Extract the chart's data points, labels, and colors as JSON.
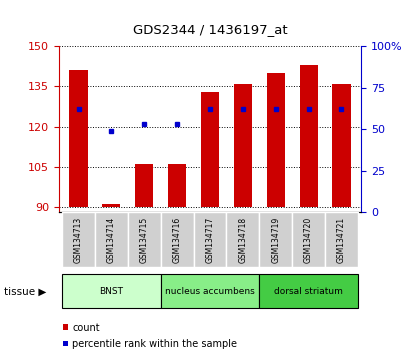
{
  "title": "GDS2344 / 1436197_at",
  "samples": [
    "GSM134713",
    "GSM134714",
    "GSM134715",
    "GSM134716",
    "GSM134717",
    "GSM134718",
    "GSM134719",
    "GSM134720",
    "GSM134721"
  ],
  "count_values": [
    141,
    91,
    106,
    106,
    133,
    136,
    140,
    143,
    136
  ],
  "percentile_values": [
    62,
    49,
    53,
    53,
    62,
    62,
    62,
    62,
    62
  ],
  "ylim_left": [
    88,
    150
  ],
  "ylim_right": [
    0,
    100
  ],
  "yticks_left": [
    90,
    105,
    120,
    135,
    150
  ],
  "yticks_right": [
    0,
    25,
    50,
    75,
    100
  ],
  "bar_bottom": 90,
  "bar_color": "#cc0000",
  "dot_color": "#0000cc",
  "tissue_groups": [
    {
      "label": "BNST",
      "start": 0,
      "end": 3,
      "color": "#ccffcc"
    },
    {
      "label": "nucleus accumbens",
      "start": 3,
      "end": 6,
      "color": "#88ee88"
    },
    {
      "label": "dorsal striatum",
      "start": 6,
      "end": 9,
      "color": "#44cc44"
    }
  ],
  "left_axis_color": "#cc0000",
  "right_axis_color": "#0000cc",
  "legend_items": [
    {
      "label": "count",
      "color": "#cc0000"
    },
    {
      "label": "percentile rank within the sample",
      "color": "#0000cc"
    }
  ]
}
